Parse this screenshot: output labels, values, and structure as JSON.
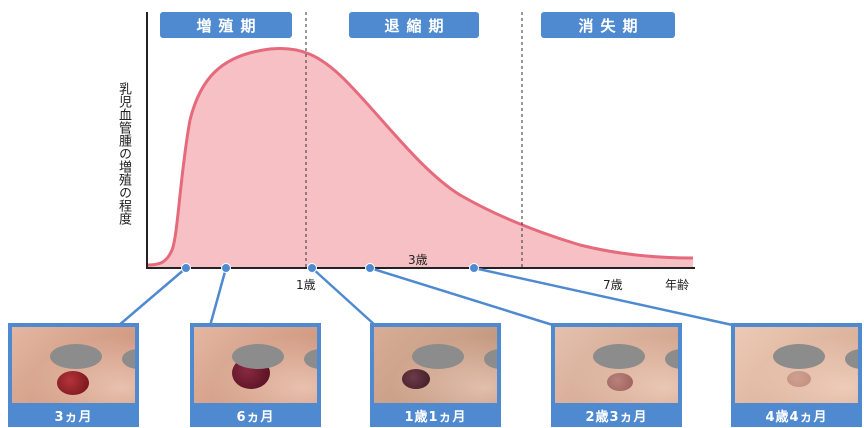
{
  "phases": [
    {
      "label": "増殖期"
    },
    {
      "label": "退縮期"
    },
    {
      "label": "消失期"
    }
  ],
  "y_axis_label": "乳児血管腫の増殖の程度",
  "x_axis": {
    "tick_1": "1歳",
    "tick_3": "3歳",
    "tick_7": "7歳",
    "unit": "年齢"
  },
  "photos": [
    {
      "caption": "3ヵ月"
    },
    {
      "caption": "6ヵ月"
    },
    {
      "caption": "1歳1ヵ月"
    },
    {
      "caption": "2歳3ヵ月"
    },
    {
      "caption": "4歳4ヵ月"
    }
  ],
  "colors": {
    "accent_blue": "#4f8ad0",
    "curve": "#e56a7c",
    "fill": "#f6c0c4"
  }
}
